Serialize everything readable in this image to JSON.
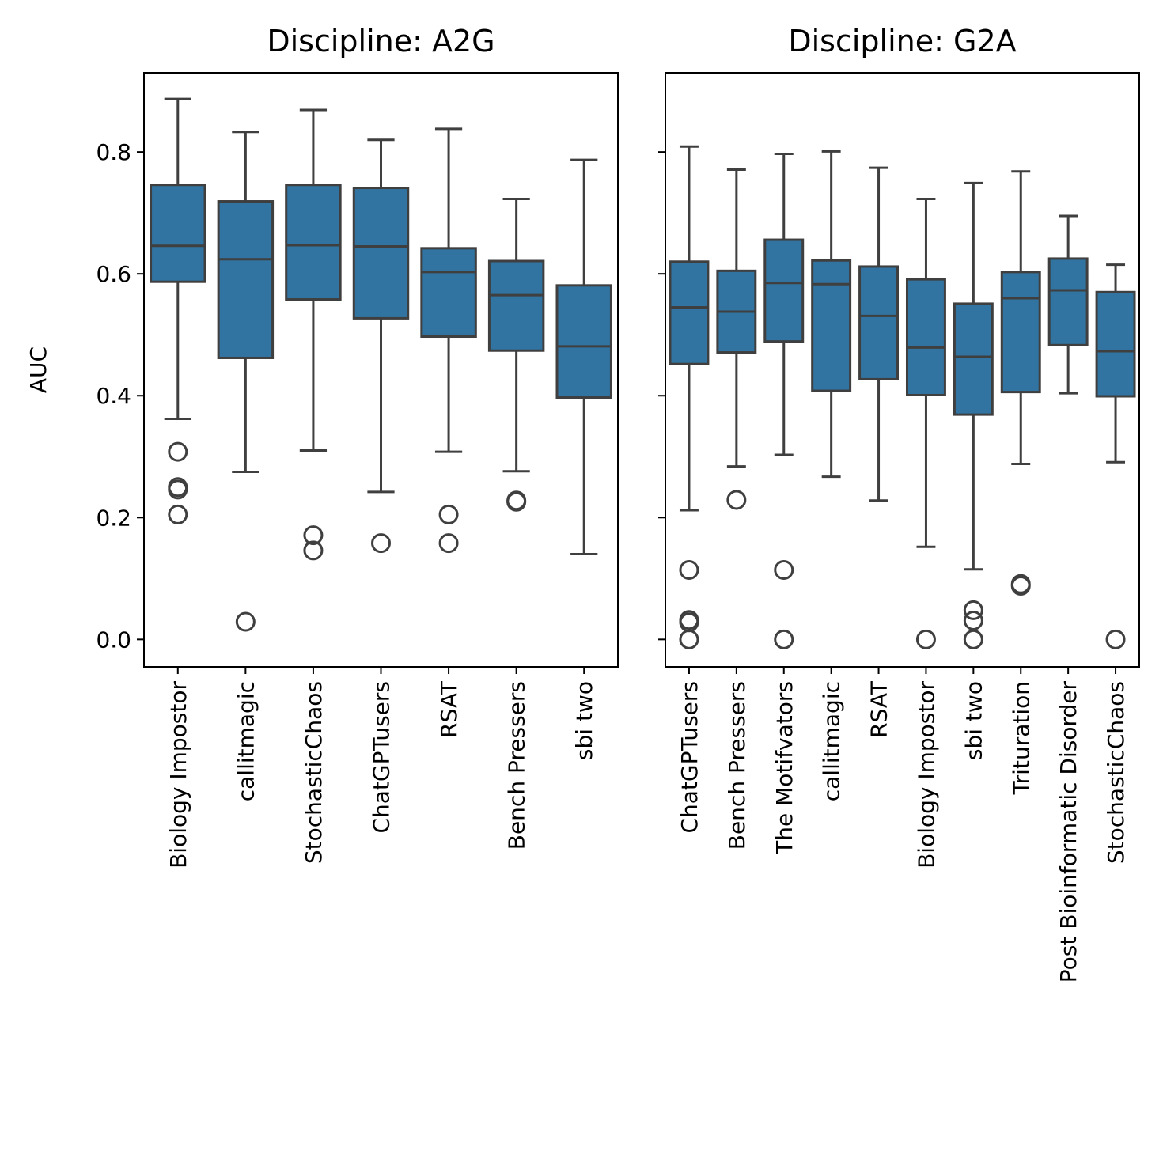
{
  "chart_data": [
    {
      "type": "box",
      "title": "Discipline: A2G",
      "ylabel": "AUC",
      "xlabel": "",
      "ylim": [
        -0.045,
        0.93
      ],
      "yticks": [
        0.0,
        0.2,
        0.4,
        0.6,
        0.8
      ],
      "ytick_labels": [
        "0.0",
        "0.2",
        "0.4",
        "0.6",
        "0.8"
      ],
      "color": "#3274a1",
      "line_color": "#3f3f3f",
      "boxes": [
        {
          "category": "Biology Impostor",
          "whisker_low": 0.362,
          "q1": 0.587,
          "median": 0.646,
          "q3": 0.746,
          "whisker_high": 0.887,
          "outliers": [
            0.308,
            0.25,
            0.246,
            0.205
          ]
        },
        {
          "category": "callitmagic",
          "whisker_low": 0.275,
          "q1": 0.462,
          "median": 0.624,
          "q3": 0.719,
          "whisker_high": 0.833,
          "outliers": [
            0.029
          ]
        },
        {
          "category": "StochasticChaos",
          "whisker_low": 0.31,
          "q1": 0.558,
          "median": 0.647,
          "q3": 0.746,
          "whisker_high": 0.869,
          "outliers": [
            0.171,
            0.146
          ]
        },
        {
          "category": "ChatGPTusers",
          "whisker_low": 0.242,
          "q1": 0.527,
          "median": 0.645,
          "q3": 0.741,
          "whisker_high": 0.82,
          "outliers": [
            0.158
          ]
        },
        {
          "category": "RSAT",
          "whisker_low": 0.308,
          "q1": 0.497,
          "median": 0.603,
          "q3": 0.642,
          "whisker_high": 0.838,
          "outliers": [
            0.205,
            0.158
          ]
        },
        {
          "category": "Bench Pressers",
          "whisker_low": 0.276,
          "q1": 0.474,
          "median": 0.565,
          "q3": 0.621,
          "whisker_high": 0.723,
          "outliers": [
            0.228,
            0.226
          ]
        },
        {
          "category": "sbi two",
          "whisker_low": 0.14,
          "q1": 0.397,
          "median": 0.481,
          "q3": 0.581,
          "whisker_high": 0.787,
          "outliers": []
        }
      ]
    },
    {
      "type": "box",
      "title": "Discipline: G2A",
      "ylabel": "",
      "xlabel": "",
      "ylim": [
        -0.045,
        0.93
      ],
      "yticks": [
        0.0,
        0.2,
        0.4,
        0.6,
        0.8
      ],
      "ytick_labels": [],
      "color": "#3274a1",
      "line_color": "#3f3f3f",
      "boxes": [
        {
          "category": "ChatGPTusers",
          "whisker_low": 0.212,
          "q1": 0.452,
          "median": 0.545,
          "q3": 0.62,
          "whisker_high": 0.809,
          "outliers": [
            0.114,
            0.032,
            0.028,
            0.0
          ]
        },
        {
          "category": "Bench Pressers",
          "whisker_low": 0.284,
          "q1": 0.471,
          "median": 0.538,
          "q3": 0.605,
          "whisker_high": 0.771,
          "outliers": [
            0.229
          ]
        },
        {
          "category": "The Motifvators",
          "whisker_low": 0.303,
          "q1": 0.489,
          "median": 0.585,
          "q3": 0.656,
          "whisker_high": 0.797,
          "outliers": [
            0.114,
            0.0
          ]
        },
        {
          "category": "callitmagic",
          "whisker_low": 0.267,
          "q1": 0.408,
          "median": 0.583,
          "q3": 0.622,
          "whisker_high": 0.801,
          "outliers": []
        },
        {
          "category": "RSAT",
          "whisker_low": 0.228,
          "q1": 0.427,
          "median": 0.531,
          "q3": 0.612,
          "whisker_high": 0.774,
          "outliers": []
        },
        {
          "category": "Biology Impostor",
          "whisker_low": 0.152,
          "q1": 0.401,
          "median": 0.479,
          "q3": 0.591,
          "whisker_high": 0.723,
          "outliers": [
            0.0
          ]
        },
        {
          "category": "sbi two",
          "whisker_low": 0.115,
          "q1": 0.369,
          "median": 0.464,
          "q3": 0.551,
          "whisker_high": 0.749,
          "outliers": [
            0.048,
            0.031,
            0.0
          ]
        },
        {
          "category": "Trituration",
          "whisker_low": 0.288,
          "q1": 0.406,
          "median": 0.56,
          "q3": 0.603,
          "whisker_high": 0.768,
          "outliers": [
            0.091,
            0.088
          ]
        },
        {
          "category": "Post Bioinformatic Disorder",
          "whisker_low": 0.404,
          "q1": 0.483,
          "median": 0.573,
          "q3": 0.625,
          "whisker_high": 0.695,
          "outliers": []
        },
        {
          "category": "StochasticChaos",
          "whisker_low": 0.291,
          "q1": 0.399,
          "median": 0.473,
          "q3": 0.57,
          "whisker_high": 0.615,
          "outliers": [
            0.0
          ]
        }
      ]
    }
  ]
}
